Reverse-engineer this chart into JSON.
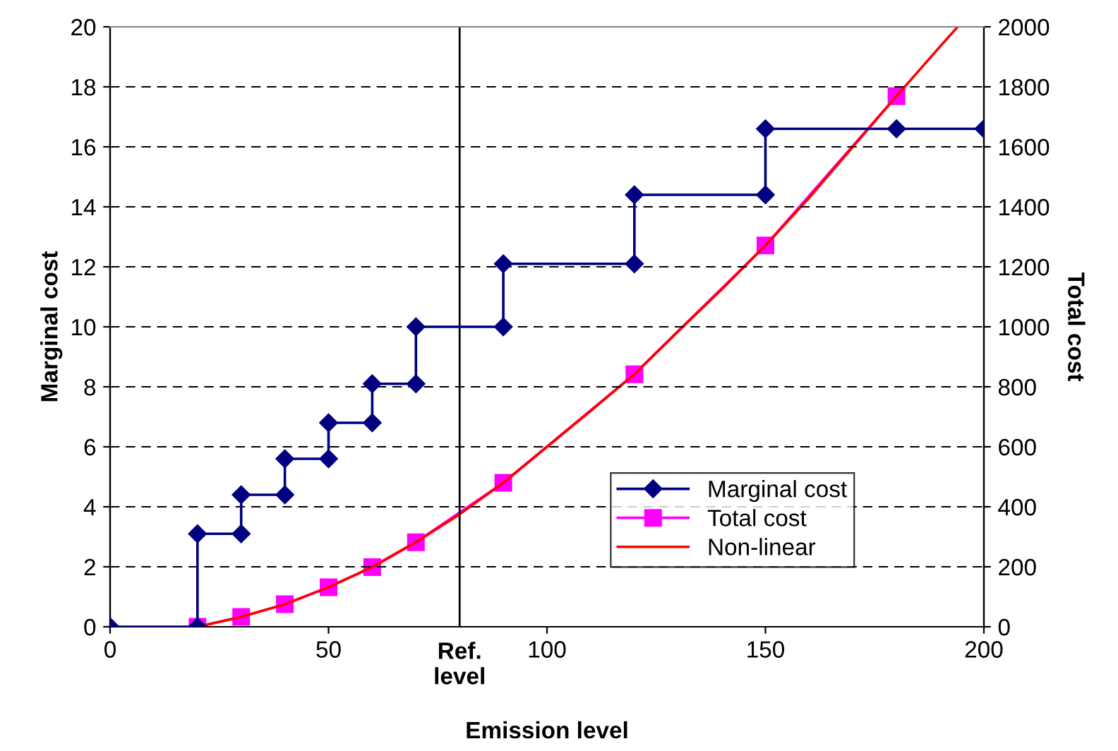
{
  "chart_data": {
    "type": "line",
    "xlabel": "Emission level",
    "ylabel": "Marginal cost",
    "y2label": "Total cost",
    "series": [
      {
        "name": "Marginal cost",
        "color": "#000080",
        "marker": "diamond",
        "x": [
          0,
          20,
          20,
          30,
          30,
          40,
          40,
          50,
          50,
          60,
          60,
          70,
          70,
          90,
          90,
          120,
          120,
          150,
          150,
          180,
          200
        ],
        "values": [
          0,
          0,
          3.1,
          3.1,
          4.4,
          4.4,
          5.6,
          5.6,
          6.8,
          6.8,
          8.1,
          8.1,
          10,
          10,
          12.1,
          12.1,
          14.4,
          14.4,
          16.6,
          16.6,
          16.6
        ]
      },
      {
        "name": "Total cost",
        "color": "#ff00ff",
        "marker": "square",
        "axis": "y2",
        "x": [
          20,
          30,
          40,
          50,
          60,
          70,
          90,
          120,
          150,
          180
        ],
        "values": [
          0,
          33,
          75,
          132,
          199,
          282,
          480,
          842,
          1271,
          1769
        ]
      },
      {
        "name": "Non-linear",
        "color": "#ff0000",
        "marker": "none",
        "axis": "y2",
        "x": [
          20,
          30,
          40,
          50,
          60,
          70,
          80,
          90,
          100,
          110,
          120,
          130,
          140,
          150,
          160,
          170,
          180,
          190,
          194
        ],
        "values": [
          0,
          33,
          75,
          132,
          199,
          282,
          375,
          480,
          600,
          720,
          842,
          985,
          1125,
          1271,
          1430,
          1600,
          1769,
          1935,
          2000
        ]
      }
    ],
    "xlim": [
      0,
      200
    ],
    "xticks": [
      0,
      50,
      100,
      150,
      200
    ],
    "ylim": [
      0,
      20
    ],
    "yticks": [
      0,
      2,
      4,
      6,
      8,
      10,
      12,
      14,
      16,
      18,
      20
    ],
    "y2lim": [
      0,
      2000
    ],
    "y2ticks": [
      0,
      200,
      400,
      600,
      800,
      1000,
      1200,
      1400,
      1600,
      1800,
      2000
    ],
    "ref_lines": [
      {
        "axis": "x",
        "value": 80,
        "label": "Ref.\nlevel",
        "color": "#000000",
        "line_style": "solid"
      }
    ],
    "grid": "y",
    "legend": "bottom right"
  }
}
